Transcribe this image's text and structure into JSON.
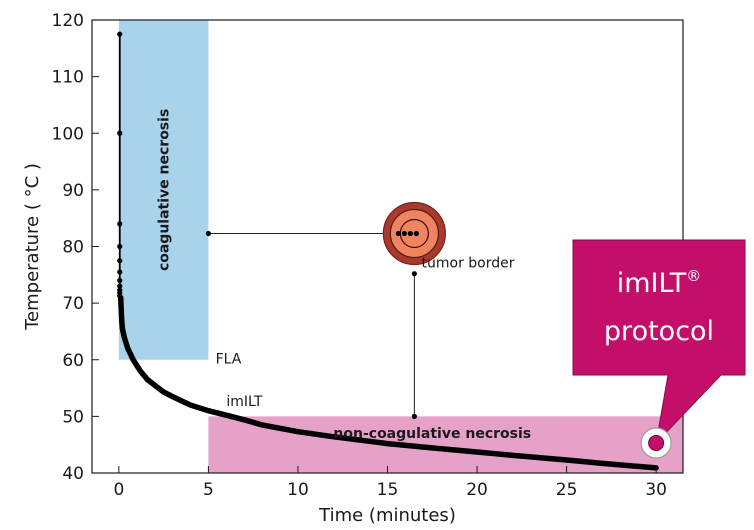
{
  "chart_data": {
    "type": "line",
    "title": "",
    "xlabel": "Time (minutes)",
    "ylabel": "Temperature ( °C )",
    "xlim": [
      -1.5,
      31.5
    ],
    "ylim": [
      40,
      120
    ],
    "xticks": [
      0,
      5,
      10,
      15,
      20,
      25,
      30
    ],
    "yticks": [
      40,
      50,
      60,
      70,
      80,
      90,
      100,
      110,
      120
    ],
    "grid": false,
    "regions": [
      {
        "name": "coagulative necrosis",
        "x": [
          0,
          5
        ],
        "y": [
          60,
          120
        ],
        "color": "#a8d3ea"
      },
      {
        "name": "non-coagulative necrosis",
        "x": [
          5,
          31.5
        ],
        "y": [
          40,
          50
        ],
        "color": "#e6a1c9"
      }
    ],
    "series": [
      {
        "name": "imILT",
        "x": [
          0.1,
          0.13,
          0.16,
          0.2,
          0.3,
          0.5,
          0.8,
          1.2,
          1.6,
          2,
          2.5,
          3,
          4,
          5,
          6,
          7,
          8,
          10,
          12,
          15,
          18,
          20,
          22,
          25,
          27,
          30
        ],
        "y": [
          71,
          69,
          67,
          65.5,
          64,
          62,
          60,
          58,
          56.5,
          55.5,
          54.3,
          53.5,
          52,
          51,
          50.2,
          49.4,
          48.5,
          47.3,
          46.4,
          45.2,
          44.3,
          43.7,
          43.1,
          42.3,
          41.7,
          40.9
        ]
      },
      {
        "name": "FLA",
        "x": [
          0.05,
          0.05,
          0.05,
          0.05,
          0.05,
          0.05,
          0.05,
          0.05,
          0.05,
          0.05,
          0.05
        ],
        "y": [
          117.5,
          100,
          84,
          80,
          77.5,
          75.5,
          74,
          73,
          72.3,
          71.8,
          71.3
        ]
      }
    ],
    "annotations": {
      "fla": "FLA",
      "imilt": "imILT",
      "tumor_border": "tumor border",
      "coagulative": "coagulative necrosis",
      "non_coagulative": "non-coagulative necrosis"
    },
    "callout": {
      "line1": "imILT",
      "sup": "®",
      "line2": "protocol",
      "color": "#c40f6a"
    },
    "tumor_symbol": {
      "x": 16.5,
      "y": 82.3
    },
    "connectors": [
      {
        "from": [
          5,
          82.3
        ],
        "to": [
          15.5,
          82.3
        ]
      },
      {
        "from": [
          16.5,
          75.2
        ],
        "to": [
          16.5,
          50
        ]
      }
    ],
    "colors": {
      "coagulative": "#a8d3ea",
      "non_coagulative": "#e6a1c9",
      "tumor_outer": "#a8392e",
      "tumor_inner": "#f08460",
      "curve": "#000000"
    }
  }
}
